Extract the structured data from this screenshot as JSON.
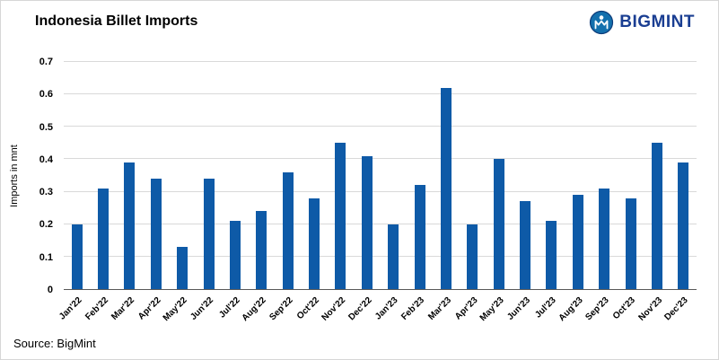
{
  "header": {
    "title": "Indonesia Billet Imports",
    "logo_text": "BIGMINT"
  },
  "footer": {
    "source": "Source: BigMint"
  },
  "colors": {
    "bar": "#0e5aa7",
    "logo_text": "#1a3e92",
    "logo_icon": "#1470ad",
    "gridline": "#d9d9d9"
  },
  "chart_data": {
    "type": "bar",
    "title": "Indonesia Billet Imports",
    "xlabel": "",
    "ylabel": "Imports in mnt",
    "ylim": [
      0,
      0.7
    ],
    "ytick_step": 0.1,
    "grid": true,
    "legend": "none",
    "categories": [
      "Jan'22",
      "Feb'22",
      "Mar'22",
      "Apr'22",
      "May'22",
      "Jun'22",
      "Jul'22",
      "Aug'22",
      "Sep'22",
      "Oct'22",
      "Nov'22",
      "Dec'22",
      "Jan'23",
      "Feb'23",
      "Mar'23",
      "Apr'23",
      "May'23",
      "Jun'23",
      "Jul'23",
      "Aug'23",
      "Sep'23",
      "Oct'23",
      "Nov'23",
      "Dec'23"
    ],
    "values": [
      0.2,
      0.31,
      0.39,
      0.34,
      0.13,
      0.34,
      0.21,
      0.24,
      0.36,
      0.28,
      0.45,
      0.41,
      0.2,
      0.32,
      0.62,
      0.2,
      0.4,
      0.27,
      0.21,
      0.29,
      0.31,
      0.28,
      0.45,
      0.39
    ]
  }
}
